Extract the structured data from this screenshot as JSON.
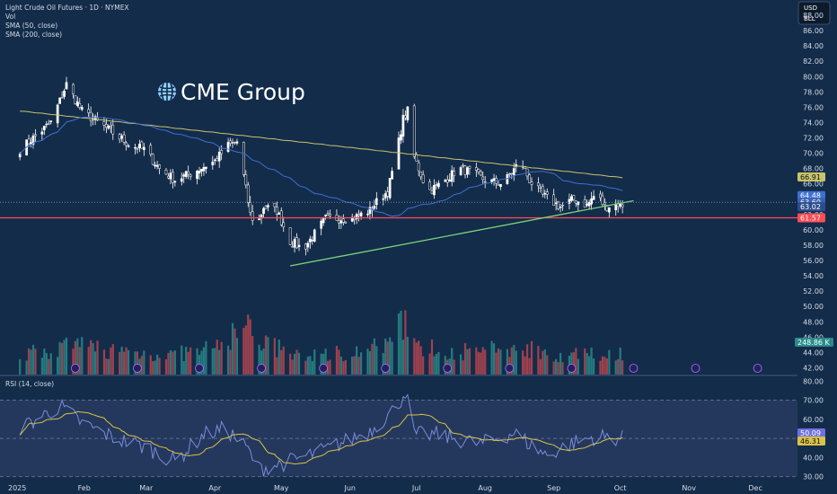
{
  "header": {
    "title": "Light Crude Oil Futures · 1D · NYMEX",
    "indicators": [
      "Vol",
      "SMA (50, close)",
      "SMA (200, close)"
    ]
  },
  "currency_box": {
    "currency": "USD",
    "unit": "BLL"
  },
  "watermark": {
    "text": "CME Group",
    "icon": "globe-icon"
  },
  "rsi_header": "RSI (14, close)",
  "colors": {
    "background": "#132c4a",
    "up": "#ffffff",
    "down": "#0b1a2e",
    "vol_up": "#2a8a8a",
    "vol_down": "#b8454f",
    "sma50": "#3f6fd0",
    "sma200": "#c9c46b",
    "support": "#ff4d55",
    "trendline": "#7ed37a",
    "rsi_line": "#7a8cd8",
    "rsi_ma": "#d9c248",
    "rsi_band": "#24385e",
    "axis_text": "#d4dbe6"
  },
  "chart_data": {
    "type": "candlestick",
    "symbol": "Light Crude Oil Futures",
    "interval": "1D",
    "exchange": "NYMEX",
    "y_axis": {
      "ticks": [
        "88.00",
        "86.00",
        "84.00",
        "82.00",
        "80.00",
        "78.00",
        "76.00",
        "74.00",
        "72.00",
        "70.00",
        "68.00",
        "66.00",
        "64.00",
        "62.00",
        "60.00",
        "58.00",
        "56.00",
        "54.00",
        "52.00",
        "50.00",
        "48.00",
        "46.00",
        "44.00",
        "42.00"
      ],
      "range": [
        41,
        90
      ]
    },
    "x_axis": {
      "labels": [
        "2025",
        "Feb",
        "Mar",
        "Apr",
        "May",
        "Jun",
        "Jul",
        "Aug",
        "Sep",
        "Oct",
        "Nov",
        "Dec"
      ],
      "range_days": [
        -7,
        353
      ]
    },
    "price_labels": [
      {
        "name": "sma200",
        "value": "66.91"
      },
      {
        "name": "sma50",
        "value": "64.48"
      },
      {
        "name": "high",
        "value": "63.60"
      },
      {
        "name": "last",
        "value": "63.02"
      },
      {
        "name": "support",
        "value": "61.57"
      }
    ],
    "volume_label": "248.86 K",
    "support_level": 61.57,
    "trendline": {
      "from": {
        "day": 124,
        "price": 55.3
      },
      "to": {
        "day": 279,
        "price": 63.8
      }
    },
    "rsi": {
      "length": 14,
      "ticks": [
        "80.00",
        "70.00",
        "60.00",
        "50.00",
        "40.00",
        "30.00"
      ],
      "range": [
        27,
        82
      ],
      "band": [
        30,
        70
      ],
      "mid": 50,
      "value_labels": [
        "50.09",
        "46.31"
      ]
    },
    "price_anchors": [
      [
        2,
        70.5
      ],
      [
        16,
        74.0
      ],
      [
        23,
        79.0
      ],
      [
        30,
        75.5
      ],
      [
        40,
        73.5
      ],
      [
        52,
        71.0
      ],
      [
        58,
        70.5
      ],
      [
        65,
        68.0
      ],
      [
        72,
        66.5
      ],
      [
        80,
        67.5
      ],
      [
        90,
        69.0
      ],
      [
        96,
        71.0
      ],
      [
        100,
        71.5
      ],
      [
        103,
        67.0
      ],
      [
        106,
        62.0
      ],
      [
        109,
        60.5
      ],
      [
        112,
        63.0
      ],
      [
        118,
        62.5
      ],
      [
        124,
        58.5
      ],
      [
        130,
        57.5
      ],
      [
        140,
        61.5
      ],
      [
        152,
        61.5
      ],
      [
        160,
        62.5
      ],
      [
        164,
        64.0
      ],
      [
        168,
        65.0
      ],
      [
        172,
        70.0
      ],
      [
        175,
        74.5
      ],
      [
        178,
        76.0
      ],
      [
        180,
        69.5
      ],
      [
        186,
        65.0
      ],
      [
        192,
        66.0
      ],
      [
        200,
        68.0
      ],
      [
        206,
        67.5
      ],
      [
        212,
        66.5
      ],
      [
        220,
        66.0
      ],
      [
        224,
        67.5
      ],
      [
        228,
        69.0
      ],
      [
        232,
        66.5
      ],
      [
        238,
        64.5
      ],
      [
        246,
        63.0
      ],
      [
        252,
        64.0
      ],
      [
        258,
        63.2
      ],
      [
        262,
        64.8
      ],
      [
        266,
        63.0
      ],
      [
        272,
        63.4
      ],
      [
        274,
        63.02
      ]
    ],
    "volume_anchors": [
      [
        2,
        22
      ],
      [
        30,
        32
      ],
      [
        50,
        25
      ],
      [
        70,
        22
      ],
      [
        90,
        28
      ],
      [
        98,
        45
      ],
      [
        103,
        55
      ],
      [
        110,
        40
      ],
      [
        125,
        20
      ],
      [
        150,
        25
      ],
      [
        160,
        28
      ],
      [
        170,
        35
      ],
      [
        175,
        60
      ],
      [
        178,
        65
      ],
      [
        182,
        30
      ],
      [
        200,
        25
      ],
      [
        220,
        28
      ],
      [
        230,
        30
      ],
      [
        245,
        22
      ],
      [
        265,
        22
      ],
      [
        274,
        25
      ]
    ],
    "rsi_anchors": [
      [
        2,
        55
      ],
      [
        20,
        67
      ],
      [
        30,
        58
      ],
      [
        45,
        50
      ],
      [
        60,
        45
      ],
      [
        72,
        38
      ],
      [
        85,
        52
      ],
      [
        95,
        55
      ],
      [
        105,
        44
      ],
      [
        110,
        34
      ],
      [
        124,
        38
      ],
      [
        140,
        44
      ],
      [
        160,
        54
      ],
      [
        172,
        66
      ],
      [
        176,
        75
      ],
      [
        180,
        52
      ],
      [
        190,
        52
      ],
      [
        210,
        47
      ],
      [
        225,
        53
      ],
      [
        232,
        47
      ],
      [
        240,
        41
      ],
      [
        250,
        47
      ],
      [
        262,
        51
      ],
      [
        274,
        50
      ]
    ]
  }
}
